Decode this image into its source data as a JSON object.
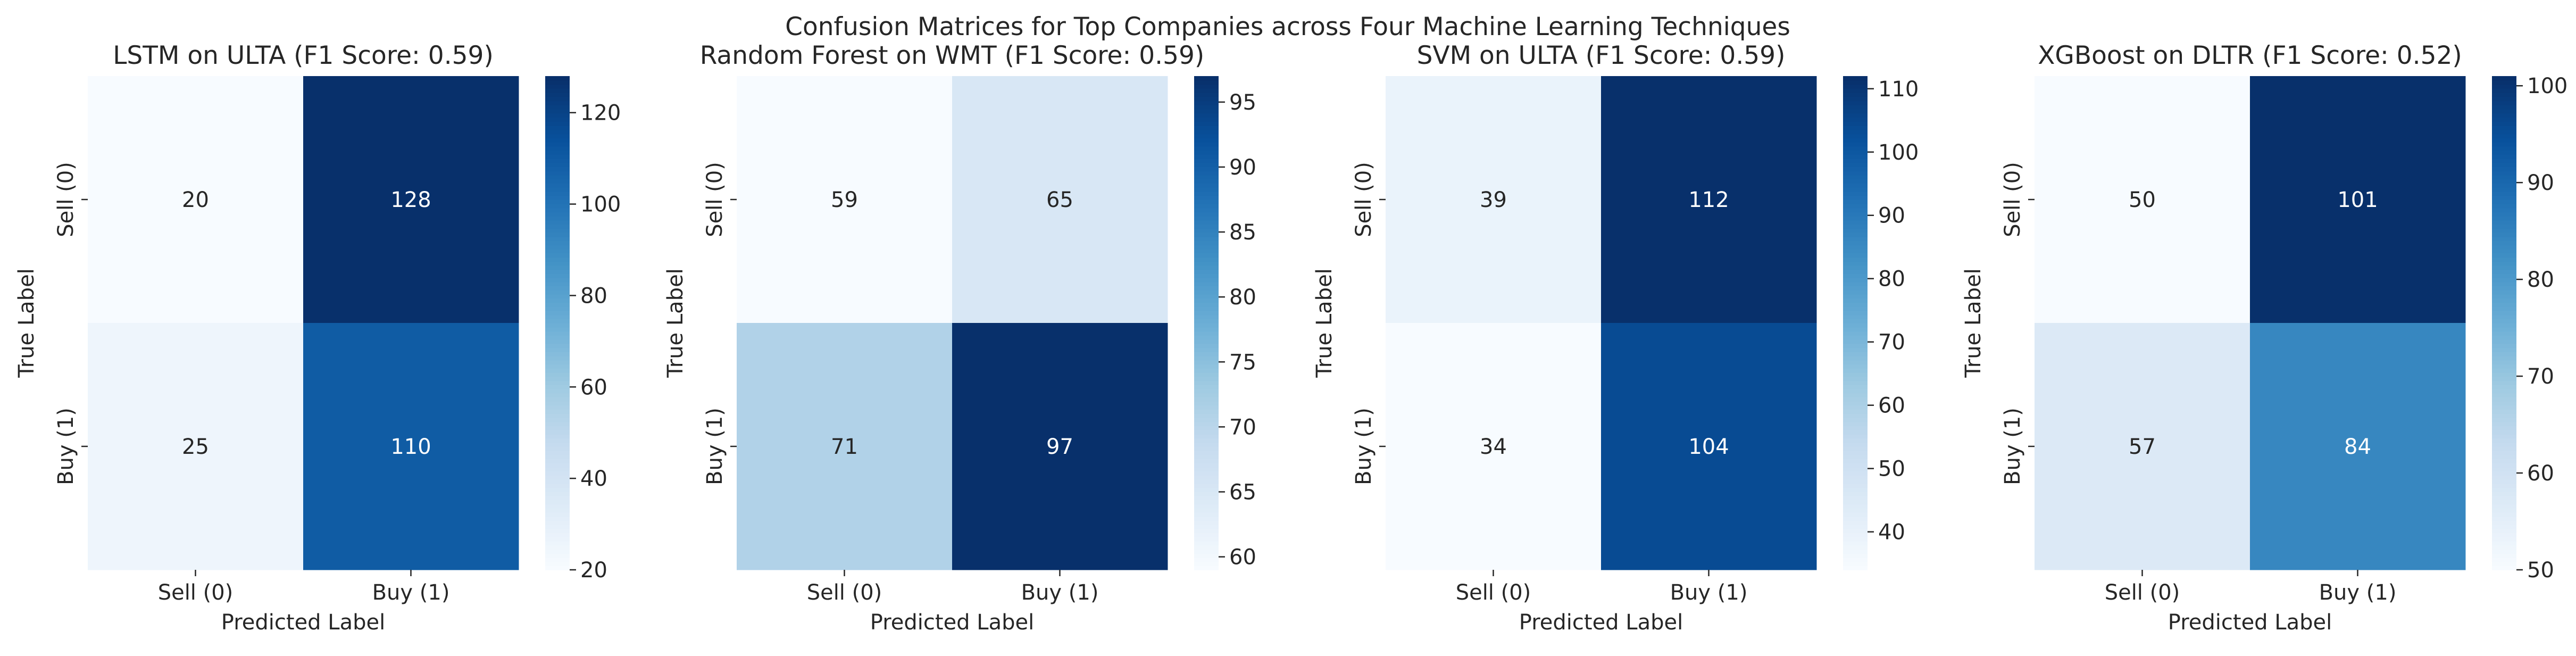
{
  "figure": {
    "title": "Confusion Matrices for Top Companies across Four Machine Learning Techniques"
  },
  "chart_data": [
    {
      "type": "heatmap",
      "title": "LSTM on ULTA (F1 Score: 0.59)",
      "xlabel": "Predicted Label",
      "ylabel": "True Label",
      "x_categories": [
        "Sell (0)",
        "Buy (1)"
      ],
      "y_categories": [
        "Sell (0)",
        "Buy (1)"
      ],
      "matrix": [
        [
          20,
          128
        ],
        [
          25,
          110
        ]
      ],
      "colorbar": {
        "min": 20,
        "max": 128,
        "ticks": [
          20,
          40,
          60,
          80,
          100,
          120
        ]
      },
      "colormap": "Blues"
    },
    {
      "type": "heatmap",
      "title": "Random Forest on WMT (F1 Score: 0.59)",
      "xlabel": "Predicted Label",
      "ylabel": "True Label",
      "x_categories": [
        "Sell (0)",
        "Buy (1)"
      ],
      "y_categories": [
        "Sell (0)",
        "Buy (1)"
      ],
      "matrix": [
        [
          59,
          65
        ],
        [
          71,
          97
        ]
      ],
      "colorbar": {
        "min": 59,
        "max": 97,
        "ticks": [
          60,
          65,
          70,
          75,
          80,
          85,
          90,
          95
        ]
      },
      "colormap": "Blues"
    },
    {
      "type": "heatmap",
      "title": "SVM on ULTA (F1 Score: 0.59)",
      "xlabel": "Predicted Label",
      "ylabel": "True Label",
      "x_categories": [
        "Sell (0)",
        "Buy (1)"
      ],
      "y_categories": [
        "Sell (0)",
        "Buy (1)"
      ],
      "matrix": [
        [
          39,
          112
        ],
        [
          34,
          104
        ]
      ],
      "colorbar": {
        "min": 34,
        "max": 112,
        "ticks": [
          40,
          50,
          60,
          70,
          80,
          90,
          100,
          110
        ]
      },
      "colormap": "Blues"
    },
    {
      "type": "heatmap",
      "title": "XGBoost on DLTR (F1 Score: 0.52)",
      "xlabel": "Predicted Label",
      "ylabel": "True Label",
      "x_categories": [
        "Sell (0)",
        "Buy (1)"
      ],
      "y_categories": [
        "Sell (0)",
        "Buy (1)"
      ],
      "matrix": [
        [
          50,
          101
        ],
        [
          57,
          84
        ]
      ],
      "colorbar": {
        "min": 50,
        "max": 101,
        "ticks": [
          50,
          60,
          70,
          80,
          90,
          100
        ]
      },
      "colormap": "Blues"
    }
  ]
}
